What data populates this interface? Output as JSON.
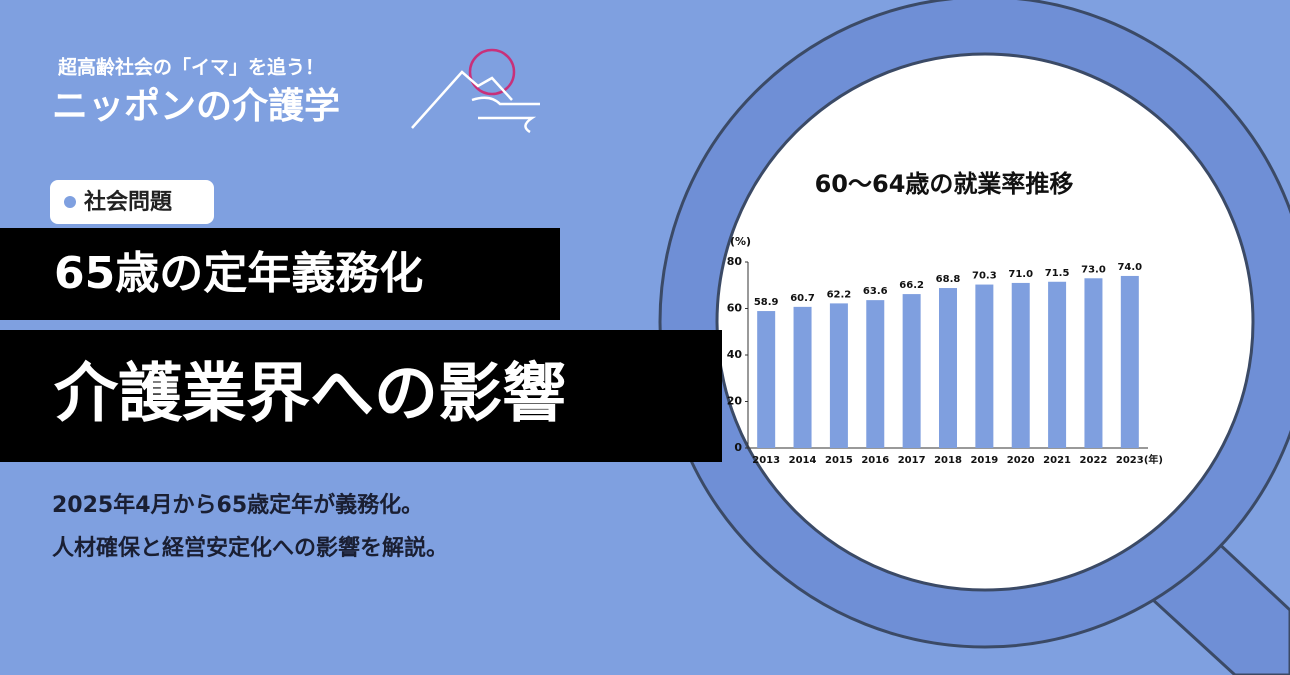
{
  "brand": {
    "tagline": "超高齢社会の「イマ」を追う！",
    "name": "ニッポンの介護学"
  },
  "tag": "社会問題",
  "headline": [
    "65歳の定年義務化",
    "介護業界への影響"
  ],
  "description": [
    "2025年4月から65歳定年が義務化。",
    "人材確保と経営安定化への影響を解説。"
  ],
  "chart_data": {
    "type": "bar",
    "title": "60〜64歳の就業率推移",
    "y_label": "(%)",
    "x_unit": "(年)",
    "categories": [
      "2013",
      "2014",
      "2015",
      "2016",
      "2017",
      "2018",
      "2019",
      "2020",
      "2021",
      "2022",
      "2023"
    ],
    "values": [
      58.9,
      60.7,
      62.2,
      63.6,
      66.2,
      68.8,
      70.3,
      71.0,
      71.5,
      73.0,
      74.0
    ],
    "value_labels": [
      "58.9",
      "60.7",
      "62.2",
      "63.6",
      "66.2",
      "68.8",
      "70.3",
      "71.0",
      "71.5",
      "73.0",
      "74.0"
    ],
    "color": "#7f9fdf",
    "ylim": [
      0,
      80
    ],
    "yticks": [
      0,
      20,
      40,
      60,
      80
    ],
    "grid": false
  }
}
